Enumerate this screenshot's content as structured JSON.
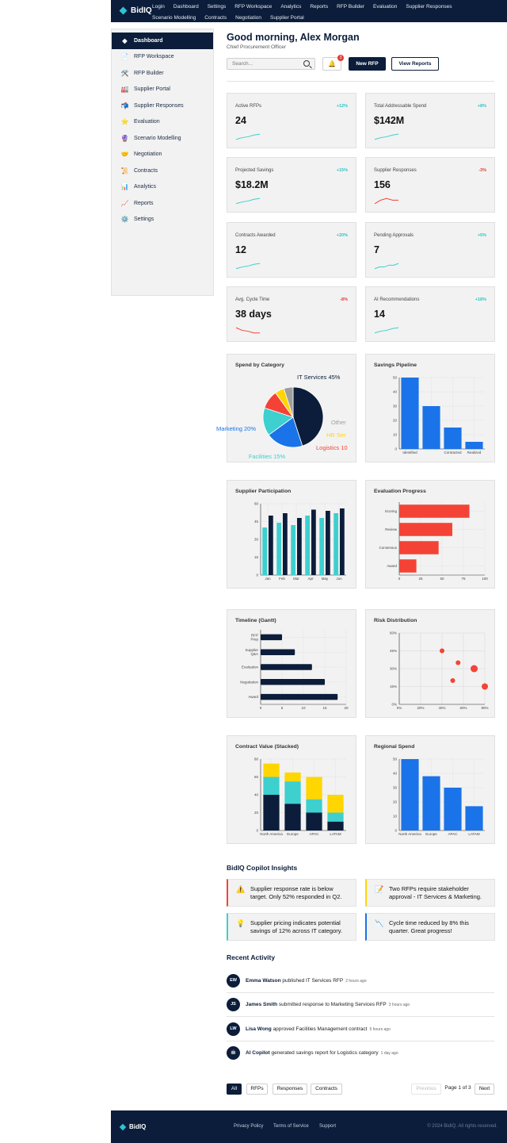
{
  "brand": "BidIQ",
  "nav": [
    "Login",
    "Dashboard",
    "Settings",
    "RFP Workspace",
    "Analytics",
    "Reports",
    "RFP Builder",
    "Evaluation",
    "Supplier Responses",
    "Scenario Modelling",
    "Contracts",
    "Negotiation",
    "Supplier Portal"
  ],
  "sidebar": [
    {
      "label": "Dashboard",
      "icon": "diamond-icon",
      "glyph": "◆"
    },
    {
      "label": "RFP Workspace",
      "icon": "document-icon",
      "glyph": "📄"
    },
    {
      "label": "RFP Builder",
      "icon": "tools-icon",
      "glyph": "🛠️"
    },
    {
      "label": "Supplier Portal",
      "icon": "factory-icon",
      "glyph": "🏭"
    },
    {
      "label": "Supplier Responses",
      "icon": "mailbox-icon",
      "glyph": "📬"
    },
    {
      "label": "Evaluation",
      "icon": "star-icon",
      "glyph": "⭐"
    },
    {
      "label": "Scenario Modelling",
      "icon": "crystal-ball-icon",
      "glyph": "🔮"
    },
    {
      "label": "Negotiation",
      "icon": "handshake-icon",
      "glyph": "🤝"
    },
    {
      "label": "Contracts",
      "icon": "scroll-icon",
      "glyph": "📜"
    },
    {
      "label": "Analytics",
      "icon": "chart-up-icon",
      "glyph": "📊"
    },
    {
      "label": "Reports",
      "icon": "trend-icon",
      "glyph": "📈"
    },
    {
      "label": "Settings",
      "icon": "gear-icon",
      "glyph": "⚙️"
    }
  ],
  "header": {
    "greeting": "Good morning, Alex Morgan",
    "role": "Chief Procurement Officer",
    "search_placeholder": "Search...",
    "notifications": "3",
    "new_rfp": "New RFP",
    "view_reports": "View Reports"
  },
  "kpis": [
    {
      "label": "Active RFPs",
      "value": "24",
      "change": "+12%",
      "trend": "up",
      "spark": [
        2,
        3,
        3.5,
        4.5,
        5
      ]
    },
    {
      "label": "Total Addressable Spend",
      "value": "$142M",
      "change": "+8%",
      "trend": "up",
      "spark": [
        2,
        3,
        3.5,
        4.5,
        5
      ]
    },
    {
      "label": "Projected Savings",
      "value": "$18.2M",
      "change": "+15%",
      "trend": "up",
      "spark": [
        2,
        3,
        3.5,
        4.5,
        5
      ]
    },
    {
      "label": "Supplier Responses",
      "value": "156",
      "change": "-3%",
      "trend": "down",
      "spark": [
        2,
        4,
        5,
        4,
        4
      ]
    },
    {
      "label": "Contracts Awarded",
      "value": "12",
      "change": "+20%",
      "trend": "up",
      "spark": [
        2,
        3,
        3.5,
        4.5,
        5
      ]
    },
    {
      "label": "Pending Approvals",
      "value": "7",
      "change": "+5%",
      "trend": "up",
      "spark": [
        2,
        3,
        3,
        4,
        4,
        5
      ]
    },
    {
      "label": "Avg. Cycle Time",
      "value": "38 days",
      "change": "-8%",
      "trend": "down",
      "spark": [
        5,
        3.5,
        3,
        2,
        2
      ]
    },
    {
      "label": "AI Recommendations",
      "value": "14",
      "change": "+18%",
      "trend": "up",
      "spark": [
        2,
        3,
        3.5,
        4.5,
        5
      ]
    }
  ],
  "colors": {
    "navy": "#0b1d3a",
    "teal": "#3ecfcf",
    "blue": "#1a73e8",
    "red": "#f44336",
    "yellow": "#ffd600",
    "gray": "#9e9e9e"
  },
  "charts": {
    "spend_by_category": {
      "title": "Spend by Category",
      "chart_data": {
        "type": "pie",
        "labels": [
          "IT Services",
          "Marketing",
          "Facilities",
          "Logistics",
          "HR Services",
          "Other"
        ],
        "values": [
          45,
          20,
          15,
          10,
          5,
          5
        ],
        "label_text": [
          "IT Services 45%",
          "Marketing 20%",
          "Facilities 15%",
          "Logistics 10",
          "HR Ser",
          "Other"
        ],
        "colors": [
          "#0b1d3a",
          "#1a73e8",
          "#3ecfcf",
          "#f44336",
          "#ffd600",
          "#9e9e9e"
        ]
      }
    },
    "savings_pipeline": {
      "title": "Savings Pipeline",
      "chart_data": {
        "type": "bar",
        "categories": [
          "Identified",
          "",
          "Contracted",
          "Realized"
        ],
        "values": [
          50,
          30,
          15,
          5
        ],
        "ylim": [
          0,
          50
        ],
        "yticks": [
          0,
          10,
          20,
          30,
          40,
          50
        ],
        "color": "#1a73e8"
      }
    },
    "supplier_participation": {
      "title": "Supplier Participation",
      "chart_data": {
        "type": "bar",
        "categories": [
          "Jan",
          "Feb",
          "Mar",
          "Apr",
          "May",
          "Jun"
        ],
        "ylim": [
          0,
          60
        ],
        "yticks": [
          0,
          15,
          30,
          45,
          60
        ],
        "series": [
          {
            "values": [
              40,
              44,
              42,
              50,
              48,
              52
            ],
            "color": "#3ecfcf"
          },
          {
            "values": [
              50,
              52,
              48,
              55,
              54,
              56
            ],
            "color": "#0b1d3a"
          }
        ]
      }
    },
    "evaluation_progress": {
      "title": "Evaluation Progress",
      "chart_data": {
        "type": "bar",
        "orientation": "horizontal",
        "categories": [
          "Scoring",
          "Review",
          "Consensus",
          "Award"
        ],
        "values": [
          82,
          62,
          46,
          20
        ],
        "xlim": [
          0,
          100
        ],
        "xticks": [
          0,
          25,
          50,
          75,
          100
        ],
        "color": "#f44336"
      }
    },
    "timeline_gantt": {
      "title": "Timeline (Gantt)",
      "chart_data": {
        "type": "bar",
        "orientation": "horizontal",
        "categories": [
          "RFP Prep",
          "Supplier Q&A",
          "Evaluation",
          "Negotiation",
          "Award"
        ],
        "cat_lines": [
          [
            "RFP",
            "Prep"
          ],
          [
            "Supplier",
            "Q&A"
          ],
          [
            "Evaluation"
          ],
          [
            "Negotiation"
          ],
          [
            "Award"
          ]
        ],
        "values": [
          5,
          8,
          12,
          15,
          18
        ],
        "xlim": [
          0,
          20
        ],
        "xticks": [
          0,
          5,
          10,
          15,
          20
        ],
        "color": "#0b1d3a"
      }
    },
    "risk_distribution": {
      "title": "Risk Distribution",
      "chart_data": {
        "type": "scatter",
        "xlim": [
          0,
          80
        ],
        "ylim": [
          0,
          60
        ],
        "xticks": [
          "0%",
          "20%",
          "40%",
          "60%",
          "80%"
        ],
        "yticks": [
          "0%",
          "15%",
          "30%",
          "45%",
          "60%"
        ],
        "points": [
          {
            "x": 40,
            "y": 45,
            "r": 3
          },
          {
            "x": 55,
            "y": 35,
            "r": 3
          },
          {
            "x": 70,
            "y": 30,
            "r": 4.5
          },
          {
            "x": 50,
            "y": 20,
            "r": 3
          },
          {
            "x": 80,
            "y": 15,
            "r": 4
          }
        ],
        "color": "#f44336"
      }
    },
    "contract_value_stacked": {
      "title": "Contract Value (Stacked)",
      "chart_data": {
        "type": "bar",
        "stacked": true,
        "categories": [
          "North America",
          "Europe",
          "APAC",
          "LATAM"
        ],
        "ylim": [
          0,
          80
        ],
        "yticks": [
          0,
          20,
          40,
          60,
          80
        ],
        "series": [
          {
            "values": [
              40,
              30,
              20,
              10
            ],
            "color": "#0b1d3a"
          },
          {
            "values": [
              20,
              25,
              15,
              10
            ],
            "color": "#3ecfcf"
          },
          {
            "values": [
              15,
              10,
              25,
              20
            ],
            "color": "#ffd600"
          }
        ]
      }
    },
    "regional_spend": {
      "title": "Regional Spend",
      "chart_data": {
        "type": "bar",
        "categories": [
          "North America",
          "Europe",
          "APAC",
          "LATAM"
        ],
        "values": [
          50,
          38,
          30,
          17
        ],
        "ylim": [
          0,
          50
        ],
        "yticks": [
          0,
          10,
          20,
          30,
          40,
          50
        ],
        "color": "#1a73e8"
      }
    }
  },
  "insights": {
    "title": "BidIQ Copilot Insights",
    "items": [
      {
        "icon": "warning-icon",
        "glyph": "⚠️",
        "text": "Supplier response rate is below target. Only 52% responded in Q2.",
        "color": "#f44336"
      },
      {
        "icon": "memo-icon",
        "glyph": "📝",
        "text": "Two RFPs require stakeholder approval - IT Services & Marketing.",
        "color": "#ffd600"
      },
      {
        "icon": "lightbulb-icon",
        "glyph": "💡",
        "text": "Supplier pricing indicates potential savings of 12% across IT category.",
        "color": "#3ecfcf"
      },
      {
        "icon": "chart-down-icon",
        "glyph": "📉",
        "text": "Cycle time reduced by 8% this quarter. Great progress!",
        "color": "#1a73e8"
      }
    ]
  },
  "activity": {
    "title": "Recent Activity",
    "items": [
      {
        "initials": "EW",
        "name": "Emma Watson",
        "action": "published IT Services RFP",
        "time": "2 hours ago"
      },
      {
        "initials": "JS",
        "name": "James Smith",
        "action": "submitted response to Marketing Services RFP",
        "time": "3 hours ago"
      },
      {
        "initials": "LW",
        "name": "Lisa Wong",
        "action": "approved Facilities Management contract",
        "time": "5 hours ago"
      },
      {
        "initials": "🤖",
        "name": "AI Copilot",
        "action": "generated savings report for Logistics category",
        "time": "1 day ago"
      }
    ]
  },
  "tabs": [
    "All",
    "RFPs",
    "Responses",
    "Contracts"
  ],
  "pagination": {
    "previous": "Previous",
    "info": "Page 1 of 3",
    "next": "Next"
  },
  "footer": {
    "brand": "BidIQ",
    "links": [
      "Privacy Policy",
      "Terms of Service",
      "Support"
    ],
    "copyright": "© 2024 BidIQ. All rights reserved."
  }
}
